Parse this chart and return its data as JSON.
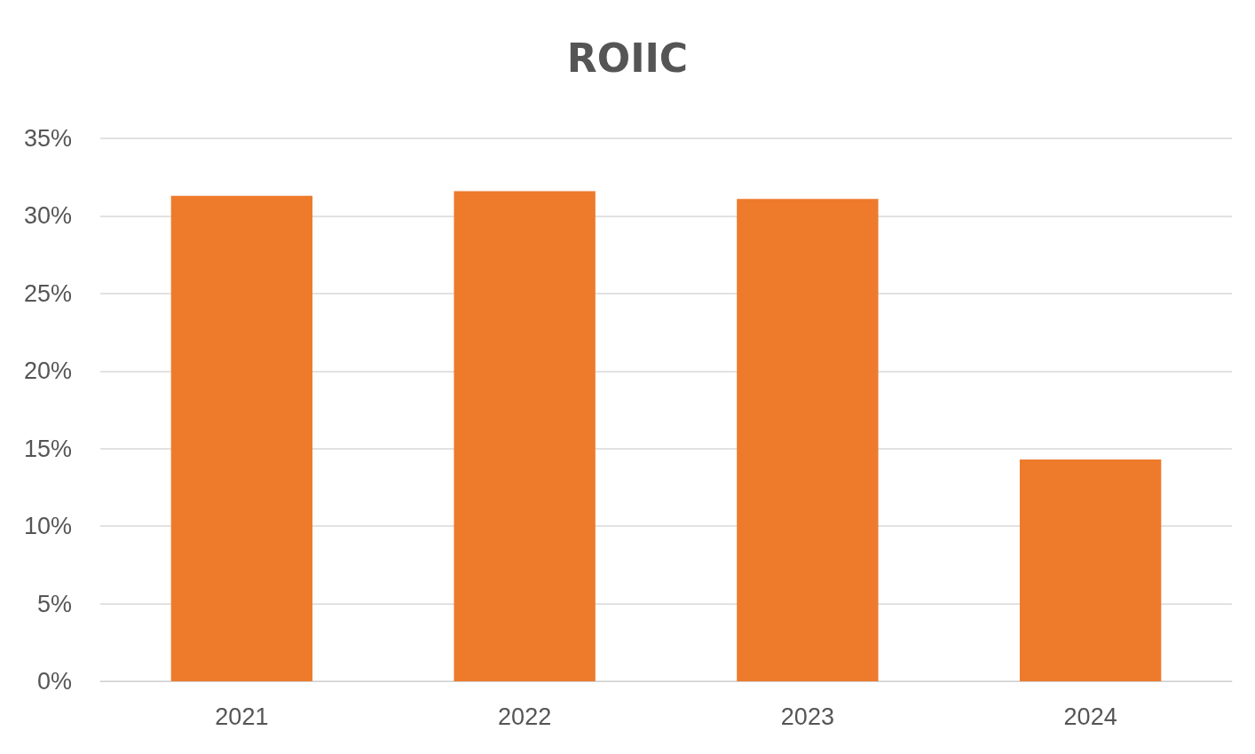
{
  "chart_data": {
    "type": "bar",
    "title": "ROIIC",
    "categories": [
      "2021",
      "2022",
      "2023",
      "2024"
    ],
    "values": [
      31.3,
      31.6,
      31.1,
      14.3
    ],
    "color": "#ee7a2c",
    "ylim": [
      0,
      35
    ],
    "yticks": [
      {
        "value": 0,
        "label": "0%"
      },
      {
        "value": 5,
        "label": "5%"
      },
      {
        "value": 10,
        "label": "10%"
      },
      {
        "value": 15,
        "label": "15%"
      },
      {
        "value": 20,
        "label": "20%"
      },
      {
        "value": 25,
        "label": "25%"
      },
      {
        "value": 30,
        "label": "30%"
      },
      {
        "value": 35,
        "label": "35%"
      }
    ],
    "grid": "y"
  }
}
